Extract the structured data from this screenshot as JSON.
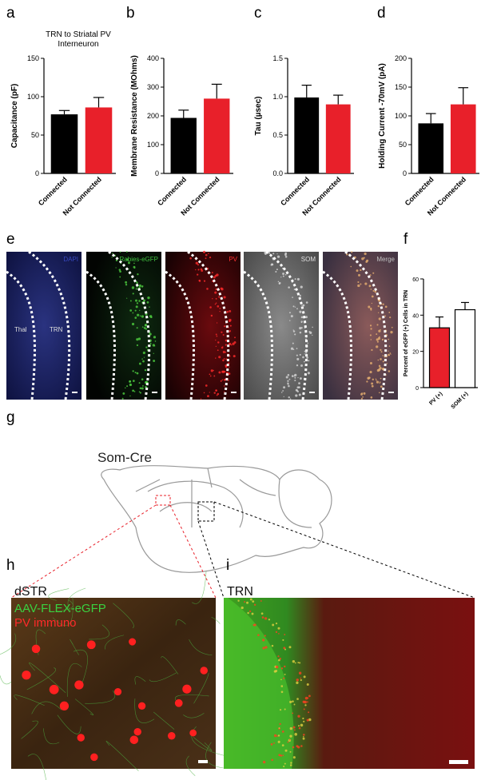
{
  "chart_data": [
    {
      "type": "bar",
      "title": "TRN to Striatal PV Interneuron",
      "ylabel": "Capacitance (pF)",
      "categories": [
        "Connected",
        "Not Connected"
      ],
      "values": [
        77,
        86
      ],
      "errors": [
        5,
        13
      ],
      "colors": [
        "#000000",
        "#e8202a"
      ],
      "ylim": [
        0,
        150
      ],
      "yticks": [
        0,
        50,
        100,
        150
      ]
    },
    {
      "type": "bar",
      "ylabel": "Membrane Resistance (MOhms)",
      "categories": [
        "Connected",
        "Not Connected"
      ],
      "values": [
        193,
        260
      ],
      "errors": [
        27,
        50
      ],
      "colors": [
        "#000000",
        "#e8202a"
      ],
      "ylim": [
        0,
        400
      ],
      "yticks": [
        0,
        100,
        200,
        300,
        400
      ]
    },
    {
      "type": "bar",
      "ylabel": "Tau (µsec)",
      "categories": [
        "Connected",
        "Not Connected"
      ],
      "values": [
        0.99,
        0.9
      ],
      "errors": [
        0.16,
        0.12
      ],
      "colors": [
        "#000000",
        "#e8202a"
      ],
      "ylim": [
        0,
        1.5
      ],
      "yticks": [
        {
          "value": 0,
          "label": "0.0"
        },
        0.5,
        {
          "value": 1,
          "label": "1.0"
        },
        1.5
      ]
    },
    {
      "type": "bar",
      "ylabel": "Holding Current -70mV (pA)",
      "categories": [
        "Connected",
        "Not Connected"
      ],
      "values": [
        87,
        120
      ],
      "errors": [
        17,
        29
      ],
      "colors": [
        "#000000",
        "#e8202a"
      ],
      "ylim": [
        0,
        200
      ],
      "yticks": [
        0,
        50,
        100,
        150,
        200
      ]
    },
    {
      "type": "bar",
      "ylabel": "Percent of eGFP (+) Cells in TRN",
      "categories": [
        "PV (+)",
        "SOM (+)"
      ],
      "values": [
        33,
        43
      ],
      "errors": [
        6,
        4
      ],
      "colors": [
        "#e8202a",
        "#ffffff"
      ],
      "edgecolor": "#000000",
      "ylim": [
        0,
        60
      ],
      "yticks": [
        0,
        20,
        40,
        60
      ]
    }
  ],
  "panel_labels": [
    "a",
    "b",
    "c",
    "d",
    "e",
    "f",
    "g",
    "h",
    "i"
  ],
  "panel_e": {
    "channels": [
      "DAPI",
      "Rabies-eGFP",
      "PV",
      "SOM",
      "Merge"
    ],
    "regions": [
      "Thal",
      "TRN"
    ]
  },
  "panel_g": {
    "title": "Som-Cre"
  },
  "panel_h": {
    "region": "dSTR",
    "labels": [
      "AAV-FLEX-eGFP",
      "PV immuno"
    ]
  },
  "panel_i": {
    "region": "TRN"
  }
}
